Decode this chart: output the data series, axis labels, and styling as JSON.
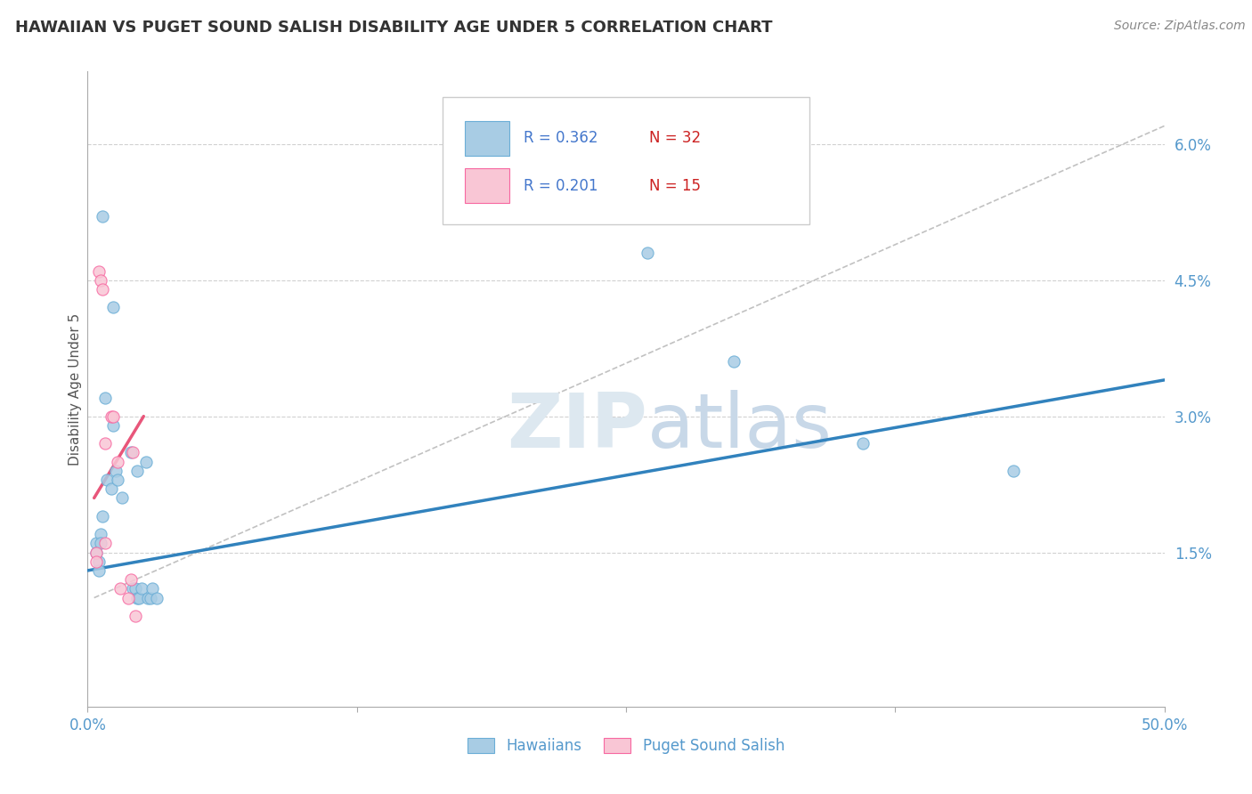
{
  "title": "HAWAIIAN VS PUGET SOUND SALISH DISABILITY AGE UNDER 5 CORRELATION CHART",
  "source": "Source: ZipAtlas.com",
  "ylabel": "Disability Age Under 5",
  "xlim": [
    0.0,
    0.5
  ],
  "ylim": [
    -0.002,
    0.068
  ],
  "legend_r_blue": "R = 0.362",
  "legend_n_blue": "N = 32",
  "legend_r_pink": "R = 0.201",
  "legend_n_pink": "N = 15",
  "legend_label_blue": "Hawaiians",
  "legend_label_pink": "Puget Sound Salish",
  "blue_color": "#a8cce4",
  "blue_edge_color": "#6baed6",
  "pink_color": "#f9c6d5",
  "pink_edge_color": "#f768a1",
  "blue_line_color": "#3182bd",
  "pink_line_color": "#e8567a",
  "dashed_line_color": "#bbbbbb",
  "watermark_color": "#dde8f0",
  "grid_color": "#cccccc",
  "title_color": "#333333",
  "r_n_color": "#4477cc",
  "axis_tick_color": "#5599cc",
  "blue_scatter": [
    [
      0.007,
      0.052
    ],
    [
      0.012,
      0.042
    ],
    [
      0.004,
      0.016
    ],
    [
      0.004,
      0.015
    ],
    [
      0.005,
      0.014
    ],
    [
      0.005,
      0.013
    ],
    [
      0.006,
      0.017
    ],
    [
      0.006,
      0.016
    ],
    [
      0.007,
      0.019
    ],
    [
      0.008,
      0.032
    ],
    [
      0.009,
      0.023
    ],
    [
      0.011,
      0.022
    ],
    [
      0.012,
      0.029
    ],
    [
      0.013,
      0.024
    ],
    [
      0.014,
      0.023
    ],
    [
      0.016,
      0.021
    ],
    [
      0.02,
      0.026
    ],
    [
      0.021,
      0.011
    ],
    [
      0.022,
      0.011
    ],
    [
      0.023,
      0.024
    ],
    [
      0.023,
      0.01
    ],
    [
      0.024,
      0.01
    ],
    [
      0.025,
      0.011
    ],
    [
      0.027,
      0.025
    ],
    [
      0.028,
      0.01
    ],
    [
      0.029,
      0.01
    ],
    [
      0.03,
      0.011
    ],
    [
      0.032,
      0.01
    ],
    [
      0.26,
      0.048
    ],
    [
      0.3,
      0.036
    ],
    [
      0.36,
      0.027
    ],
    [
      0.43,
      0.024
    ]
  ],
  "pink_scatter": [
    [
      0.004,
      0.015
    ],
    [
      0.004,
      0.014
    ],
    [
      0.005,
      0.046
    ],
    [
      0.006,
      0.045
    ],
    [
      0.007,
      0.044
    ],
    [
      0.008,
      0.027
    ],
    [
      0.008,
      0.016
    ],
    [
      0.011,
      0.03
    ],
    [
      0.012,
      0.03
    ],
    [
      0.014,
      0.025
    ],
    [
      0.015,
      0.011
    ],
    [
      0.019,
      0.01
    ],
    [
      0.02,
      0.012
    ],
    [
      0.021,
      0.026
    ],
    [
      0.022,
      0.008
    ]
  ],
  "blue_line_x": [
    0.0,
    0.5
  ],
  "blue_line_y": [
    0.013,
    0.034
  ],
  "pink_line_x": [
    0.003,
    0.026
  ],
  "pink_line_y": [
    0.021,
    0.03
  ],
  "dashed_line_x": [
    0.003,
    0.5
  ],
  "dashed_line_y": [
    0.01,
    0.062
  ],
  "ytick_vals": [
    0.015,
    0.03,
    0.045,
    0.06
  ],
  "ytick_labels": [
    "1.5%",
    "3.0%",
    "4.5%",
    "6.0%"
  ],
  "xtick_vals": [
    0.0,
    0.125,
    0.25,
    0.375,
    0.5
  ],
  "xtick_labels": [
    "0.0%",
    "",
    "",
    "",
    "50.0%"
  ]
}
